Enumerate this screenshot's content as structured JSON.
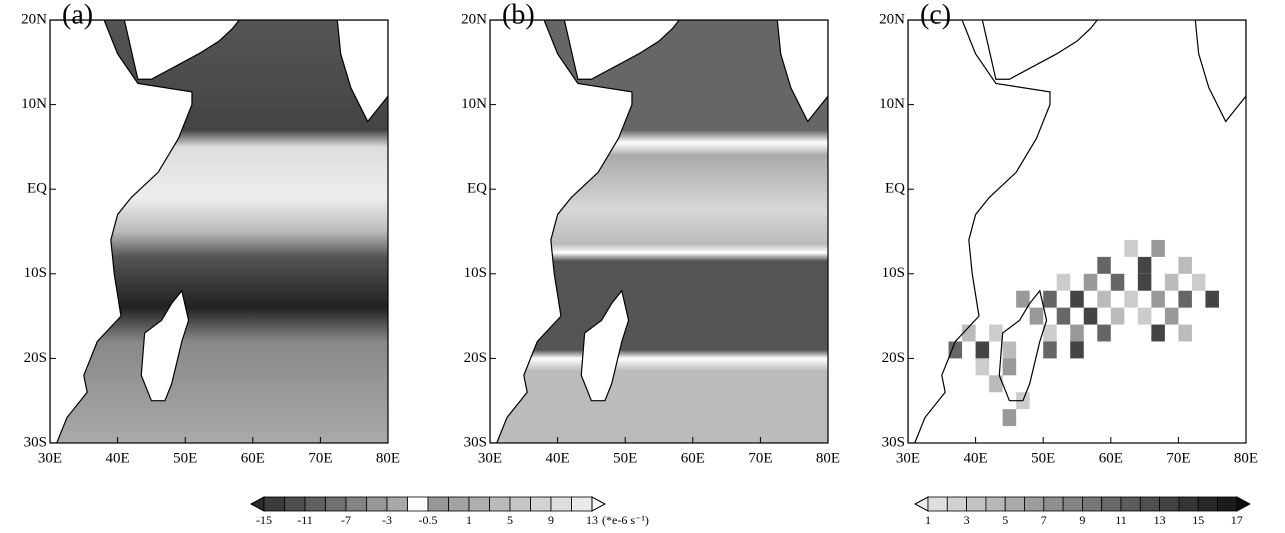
{
  "panels": [
    {
      "label": "(a)"
    },
    {
      "label": "(b)"
    },
    {
      "label": "(c)"
    }
  ],
  "x_axis": {
    "ticks": [
      "30E",
      "40E",
      "50E",
      "60E",
      "70E",
      "80E"
    ]
  },
  "y_axis": {
    "ticks": [
      "20N",
      "10N",
      "EQ",
      "10S",
      "20S",
      "30S"
    ]
  },
  "colorbars": [
    {
      "labels": [
        "-15",
        "-11",
        "-7",
        "-3",
        "-0.5",
        "1",
        "5",
        "9",
        "13"
      ],
      "unit": "(*e-6 s⁻¹)"
    },
    {
      "labels": [
        "1",
        "3",
        "5",
        "7",
        "9",
        "11",
        "13",
        "15",
        "17"
      ]
    }
  ]
}
